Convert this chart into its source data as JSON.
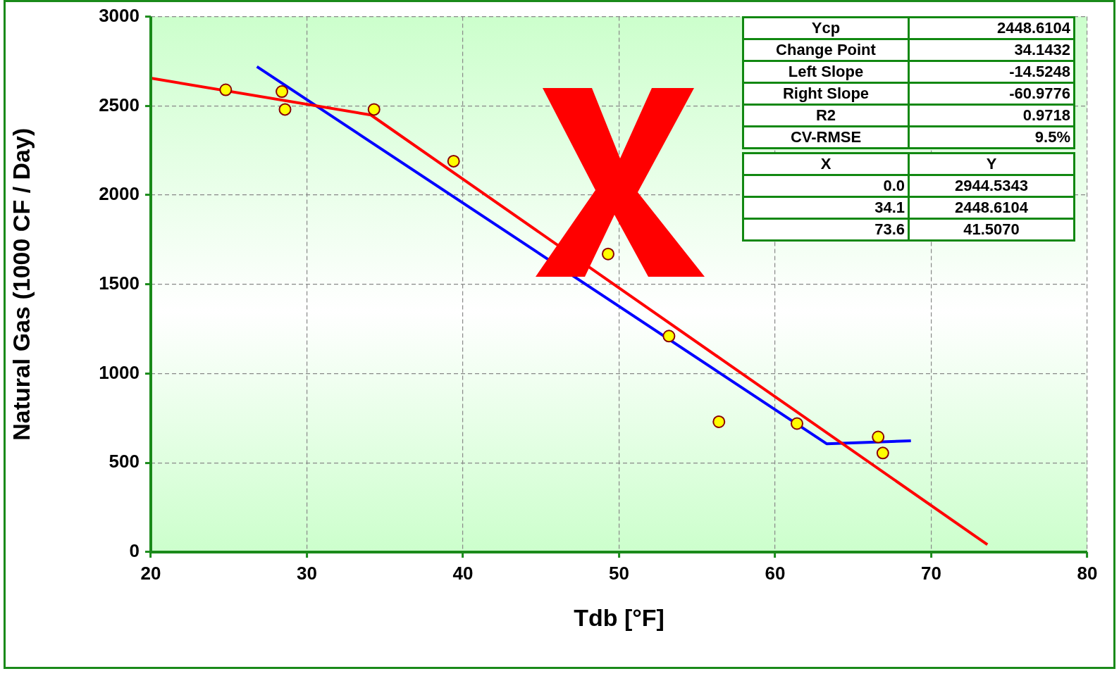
{
  "chart_data": {
    "type": "scatter",
    "xlabel": "Tdb [°F]",
    "ylabel": "Natural Gas (1000 CF / Day)",
    "xlim": [
      20,
      80
    ],
    "xticks": [
      20,
      30,
      40,
      50,
      60,
      70,
      80
    ],
    "ylim": [
      0,
      3000
    ],
    "yticks": [
      0,
      500,
      1000,
      1500,
      2000,
      2500,
      3000
    ],
    "grid": true,
    "legend": false,
    "series": [
      {
        "marker": "circle",
        "color": "#ffff00",
        "x": [
          24.8,
          28.4,
          28.6,
          34.3,
          39.4,
          49.3,
          53.2,
          56.4,
          61.4,
          66.6,
          66.9
        ],
        "values": [
          2590,
          2580,
          2480,
          2480,
          2190,
          1670,
          1210,
          730,
          720,
          645,
          555
        ]
      },
      {
        "type": "line",
        "marker": "none",
        "color": "#ff0000",
        "x": [
          20,
          34.1,
          73.6
        ],
        "values": [
          2655,
          2449,
          41.5
        ]
      },
      {
        "type": "line",
        "marker": "none",
        "color": "#0000ff",
        "x": [
          26.8,
          63.3,
          68.7
        ],
        "values": [
          2720,
          607,
          623
        ]
      }
    ],
    "annotations": [
      "Ycp",
      "2448.6104",
      "Change Point",
      "34.1432",
      "Left Slope",
      "-14.5248",
      "Right Slope",
      "-60.9776",
      "R2",
      "0.9718",
      "CV-RMSE",
      "9.5%",
      "X",
      "Y",
      "0.0",
      "2944.5343",
      "34.1",
      "2448.6104",
      "73.6",
      "41.5070"
    ]
  }
}
